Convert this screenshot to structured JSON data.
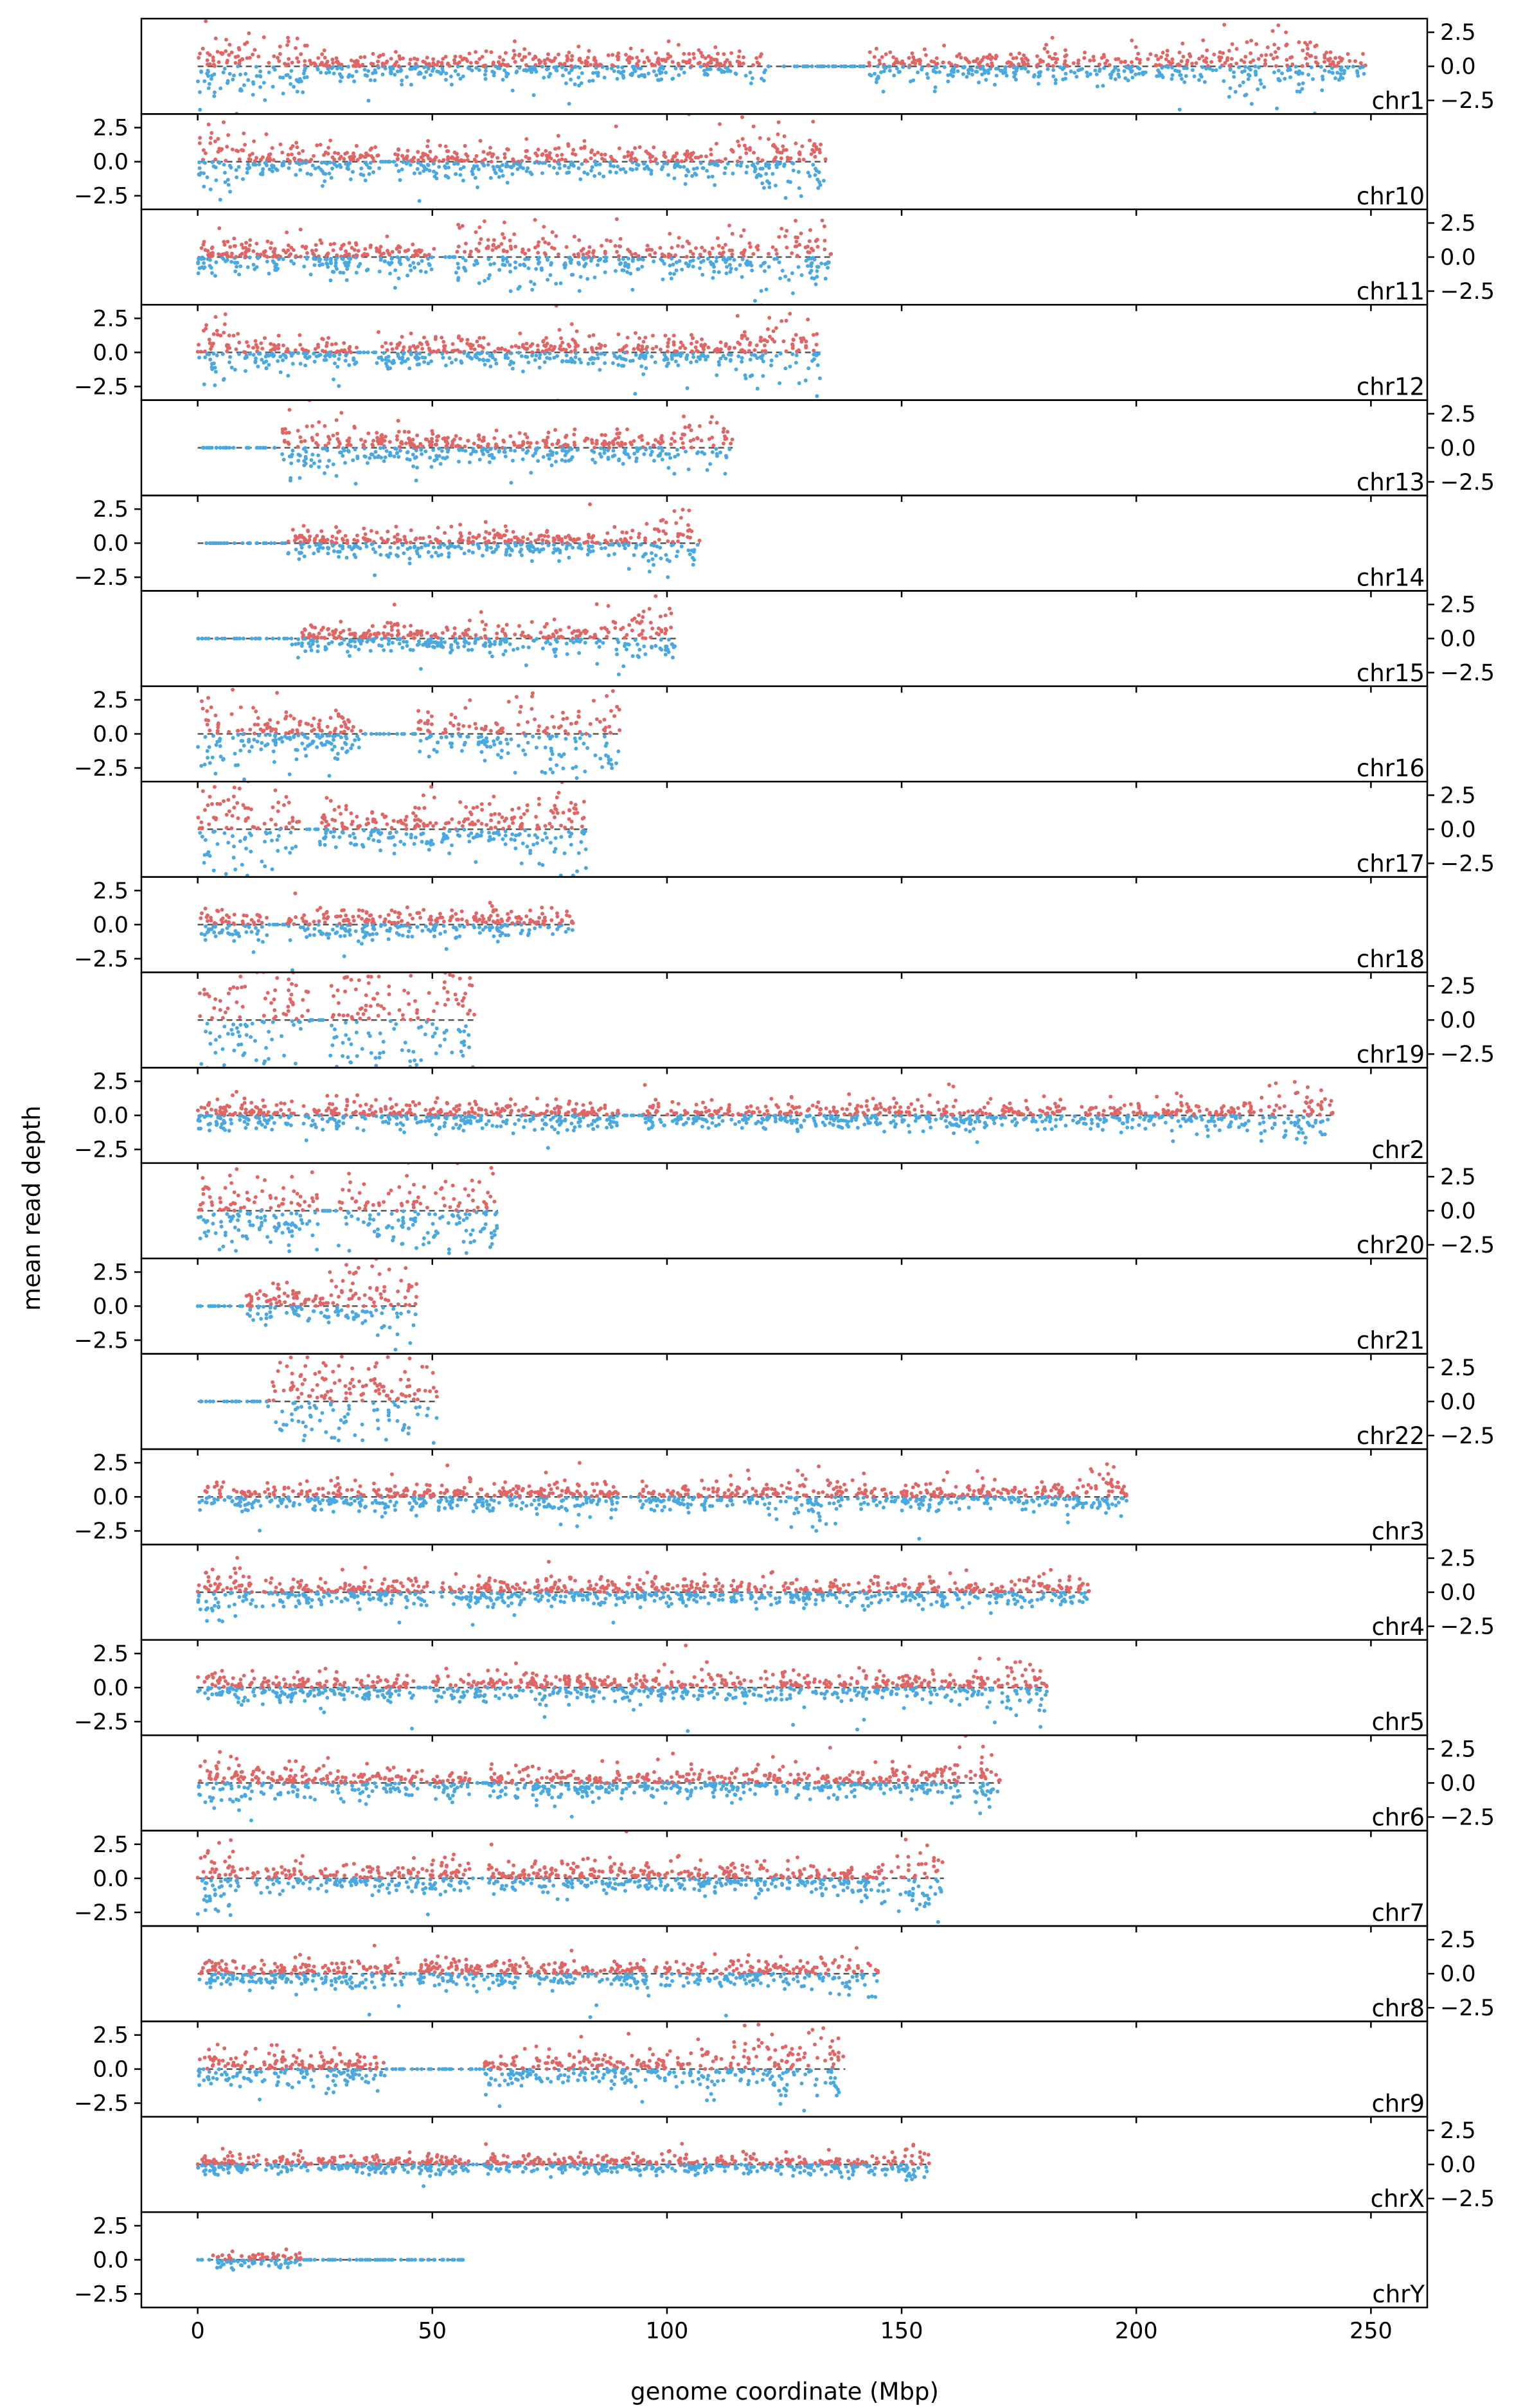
{
  "chart_data": {
    "type": "scatter",
    "xlabel": "genome coordinate (Mbp)",
    "ylabel": "mean read depth",
    "xlim": [
      -12,
      262
    ],
    "ylim": [
      -3.5,
      3.5
    ],
    "x_ticks": [
      0,
      50,
      100,
      150,
      200,
      250
    ],
    "x_tick_labels": [
      "0",
      "50",
      "100",
      "150",
      "200",
      "250"
    ],
    "y_ticks": [
      2.5,
      0.0,
      -2.5
    ],
    "y_tick_labels": [
      "2.5",
      "0.0",
      "−2.5"
    ],
    "colors": {
      "above_zero": "#e06666",
      "below_zero": "#4aa8e0",
      "baseline": "#555555"
    },
    "grid": false,
    "panels": [
      {
        "chromosome": "chr1",
        "length_mbp": 249,
        "gaps": [
          [
            121,
            143
          ]
        ],
        "noise": 1.0,
        "hot": [
          [
            0,
            25
          ],
          [
            215,
            240
          ]
        ],
        "y_axis_side": "right"
      },
      {
        "chromosome": "chr10",
        "length_mbp": 134,
        "gaps": [
          [
            39,
            42
          ]
        ],
        "noise": 1.1,
        "hot": [
          [
            0,
            10
          ],
          [
            110,
            134
          ]
        ],
        "y_axis_side": "left"
      },
      {
        "chromosome": "chr11",
        "length_mbp": 135,
        "gaps": [
          [
            51,
            55
          ]
        ],
        "noise": 1.1,
        "hot": [
          [
            55,
            80
          ],
          [
            118,
            135
          ]
        ],
        "y_axis_side": "right"
      },
      {
        "chromosome": "chr12",
        "length_mbp": 133,
        "gaps": [
          [
            34,
            38
          ]
        ],
        "noise": 1.0,
        "hot": [
          [
            0,
            8
          ],
          [
            115,
            133
          ]
        ],
        "y_axis_side": "left"
      },
      {
        "chromosome": "chr13",
        "length_mbp": 114,
        "gaps": [
          [
            0,
            18
          ]
        ],
        "noise": 1.0,
        "hot": [
          [
            18,
            30
          ],
          [
            100,
            114
          ]
        ],
        "y_axis_side": "right"
      },
      {
        "chromosome": "chr14",
        "length_mbp": 107,
        "gaps": [
          [
            0,
            19
          ]
        ],
        "noise": 0.9,
        "hot": [
          [
            95,
            107
          ]
        ],
        "y_axis_side": "left"
      },
      {
        "chromosome": "chr15",
        "length_mbp": 102,
        "gaps": [
          [
            0,
            20
          ]
        ],
        "noise": 0.9,
        "hot": [
          [
            85,
            102
          ]
        ],
        "y_axis_side": "right"
      },
      {
        "chromosome": "chr16",
        "length_mbp": 90,
        "gaps": [
          [
            35,
            47
          ]
        ],
        "noise": 1.5,
        "hot": [
          [
            0,
            10
          ],
          [
            65,
            90
          ]
        ],
        "y_axis_side": "left"
      },
      {
        "chromosome": "chr17",
        "length_mbp": 83,
        "gaps": [
          [
            22,
            26
          ]
        ],
        "noise": 1.5,
        "hot": [
          [
            0,
            20
          ],
          [
            70,
            83
          ]
        ],
        "y_axis_side": "right"
      },
      {
        "chromosome": "chr18",
        "length_mbp": 80,
        "gaps": [
          [
            15,
            19
          ]
        ],
        "noise": 1.0,
        "hot": [],
        "y_axis_side": "left"
      },
      {
        "chromosome": "chr19",
        "length_mbp": 59,
        "gaps": [
          [
            24,
            28
          ]
        ],
        "noise": 2.2,
        "hot": [
          [
            0,
            59
          ]
        ],
        "y_axis_side": "right"
      },
      {
        "chromosome": "chr2",
        "length_mbp": 242,
        "gaps": [
          [
            90,
            95
          ]
        ],
        "noise": 0.9,
        "hot": [
          [
            228,
            242
          ]
        ],
        "y_axis_side": "left"
      },
      {
        "chromosome": "chr20",
        "length_mbp": 64,
        "gaps": [
          [
            26,
            30
          ]
        ],
        "noise": 1.3,
        "hot": [
          [
            0,
            64
          ]
        ],
        "y_axis_side": "right"
      },
      {
        "chromosome": "chr21",
        "length_mbp": 47,
        "gaps": [
          [
            0,
            10
          ]
        ],
        "noise": 1.2,
        "hot": [
          [
            30,
            47
          ]
        ],
        "y_axis_side": "left"
      },
      {
        "chromosome": "chr22",
        "length_mbp": 51,
        "gaps": [
          [
            0,
            15
          ]
        ],
        "noise": 1.6,
        "hot": [
          [
            15,
            51
          ]
        ],
        "y_axis_side": "right"
      },
      {
        "chromosome": "chr3",
        "length_mbp": 198,
        "gaps": [
          [
            90,
            94
          ]
        ],
        "noise": 0.9,
        "hot": [
          [
            125,
            135
          ],
          [
            190,
            198
          ]
        ],
        "y_axis_side": "left"
      },
      {
        "chromosome": "chr4",
        "length_mbp": 190,
        "gaps": [
          [
            49,
            52
          ]
        ],
        "noise": 0.9,
        "hot": [
          [
            0,
            10
          ]
        ],
        "y_axis_side": "right"
      },
      {
        "chromosome": "chr5",
        "length_mbp": 181,
        "gaps": [
          [
            46,
            50
          ]
        ],
        "noise": 0.9,
        "hot": [
          [
            170,
            181
          ]
        ],
        "y_axis_side": "left"
      },
      {
        "chromosome": "chr6",
        "length_mbp": 171,
        "gaps": [
          [
            58,
            62
          ]
        ],
        "noise": 1.0,
        "hot": [
          [
            0,
            10
          ],
          [
            160,
            171
          ]
        ],
        "y_axis_side": "right"
      },
      {
        "chromosome": "chr7",
        "length_mbp": 159,
        "gaps": [
          [
            58,
            62
          ]
        ],
        "noise": 1.0,
        "hot": [
          [
            0,
            8
          ],
          [
            145,
            159
          ]
        ],
        "y_axis_side": "left"
      },
      {
        "chromosome": "chr8",
        "length_mbp": 145,
        "gaps": [
          [
            44,
            47
          ]
        ],
        "noise": 0.9,
        "hot": [
          [
            135,
            145
          ]
        ],
        "y_axis_side": "right"
      },
      {
        "chromosome": "chr9",
        "length_mbp": 138,
        "gaps": [
          [
            40,
            61
          ]
        ],
        "noise": 1.1,
        "hot": [
          [
            105,
            138
          ]
        ],
        "y_axis_side": "left"
      },
      {
        "chromosome": "chrX",
        "length_mbp": 156,
        "gaps": [
          [
            58,
            61
          ]
        ],
        "noise": 0.6,
        "hot": [
          [
            150,
            156
          ]
        ],
        "y_axis_side": "right"
      },
      {
        "chromosome": "chrY",
        "length_mbp": 57,
        "gaps": [
          [
            0,
            3
          ],
          [
            22,
            57
          ]
        ],
        "noise": 0.5,
        "hot": [],
        "y_axis_side": "left"
      }
    ]
  }
}
